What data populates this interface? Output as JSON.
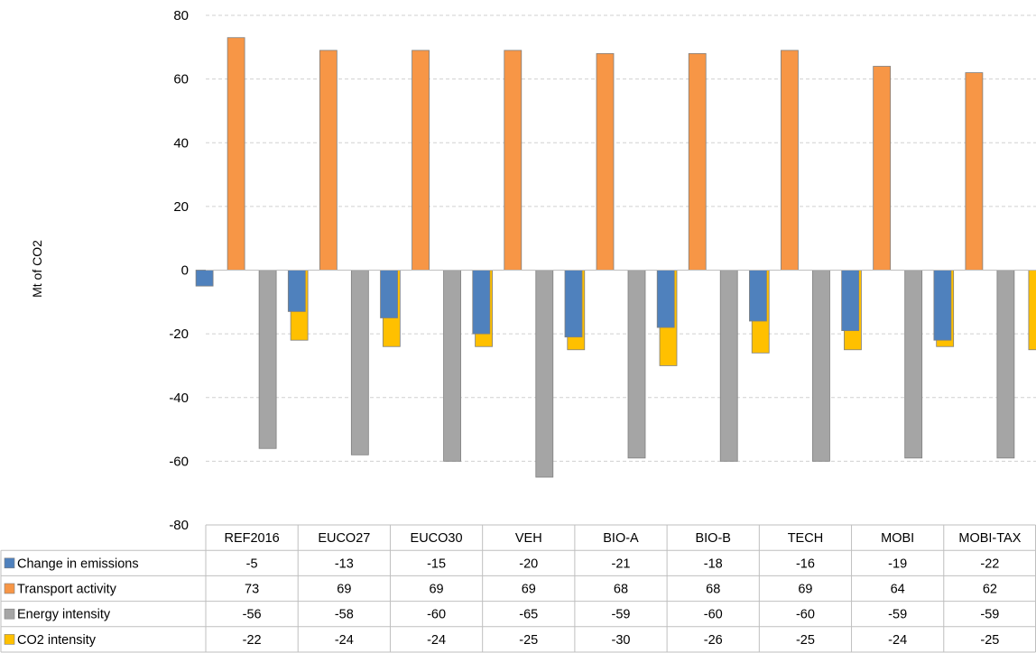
{
  "chart_data": {
    "type": "bar",
    "ylabel": "Mt of CO2",
    "ylim": [
      -80,
      80
    ],
    "yticks": [
      80,
      60,
      40,
      20,
      0,
      -20,
      -40,
      -60,
      -80
    ],
    "grid": true,
    "legend": "data-table",
    "categories": [
      "REF2016",
      "EUCO27",
      "EUCO30",
      "VEH",
      "BIO-A",
      "BIO-B",
      "TECH",
      "MOBI",
      "MOBI-TAX"
    ],
    "series": [
      {
        "name": "Change in emissions",
        "color": "#4f81bd",
        "values": [
          -5,
          -13,
          -15,
          -20,
          -21,
          -18,
          -16,
          -19,
          -22
        ]
      },
      {
        "name": "Transport activity",
        "color": "#f79646",
        "values": [
          73,
          69,
          69,
          69,
          68,
          68,
          69,
          64,
          62
        ]
      },
      {
        "name": "Energy intensity",
        "color": "#a5a5a5",
        "values": [
          -56,
          -58,
          -60,
          -65,
          -59,
          -60,
          -60,
          -59,
          -59
        ]
      },
      {
        "name": "CO2 intensity",
        "color": "#ffc000",
        "values": [
          -22,
          -24,
          -24,
          -25,
          -30,
          -26,
          -25,
          -24,
          -25
        ]
      }
    ]
  }
}
